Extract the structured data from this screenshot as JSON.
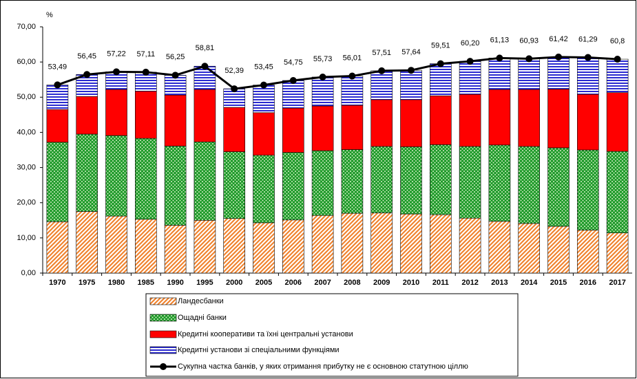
{
  "chart_data": {
    "type": "bar",
    "y_label": "%",
    "categories": [
      "1970",
      "1975",
      "1980",
      "1985",
      "1990",
      "1995",
      "2000",
      "2005",
      "2006",
      "2007",
      "2008",
      "2009",
      "2010",
      "2011",
      "2012",
      "2013",
      "2014",
      "2015",
      "2016",
      "2017"
    ],
    "series": [
      {
        "name": "Ландесбанки",
        "color": "#f0832e",
        "values": [
          14.6,
          17.5,
          16.2,
          15.3,
          13.6,
          15.0,
          15.5,
          14.3,
          15.1,
          16.4,
          17.0,
          17.1,
          16.8,
          16.6,
          15.6,
          14.7,
          14.1,
          13.3,
          12.2,
          11.4
        ]
      },
      {
        "name": "Ощадні банки",
        "color": "#1e9a2a",
        "values": [
          22.6,
          22.0,
          22.9,
          23.0,
          22.5,
          22.3,
          19.0,
          19.2,
          19.2,
          18.4,
          18.1,
          18.9,
          19.1,
          19.9,
          20.4,
          21.7,
          21.9,
          22.3,
          22.8,
          23.2
        ]
      },
      {
        "name": "Кредитні кооперативи  та їхні центральні установи",
        "color": "#ff0000",
        "values": [
          9.3,
          10.7,
          13.1,
          13.4,
          14.5,
          14.9,
          12.6,
          12.1,
          12.6,
          12.7,
          12.6,
          13.3,
          13.4,
          13.9,
          14.8,
          15.8,
          16.2,
          16.7,
          15.8,
          16.7
        ]
      },
      {
        "name": "Кредитні установи зі спеціальними функціями",
        "color": "#2a2ad0",
        "values": [
          6.99,
          6.25,
          5.02,
          5.41,
          5.65,
          6.61,
          5.29,
          7.85,
          7.85,
          8.23,
          8.31,
          8.21,
          8.34,
          9.11,
          9.4,
          8.93,
          8.73,
          9.12,
          10.49,
          9.5
        ]
      }
    ],
    "line": {
      "name": "Сукупна частка банків, у яких отримання прибутку не є основною статутною ціллю",
      "color": "#000000",
      "values": [
        53.49,
        56.45,
        57.22,
        57.11,
        56.25,
        58.81,
        52.39,
        53.45,
        54.75,
        55.73,
        56.01,
        57.51,
        57.64,
        59.51,
        60.2,
        61.13,
        60.93,
        61.42,
        61.29,
        60.8
      ],
      "value_labels": [
        "53,49",
        "56,45",
        "57,22",
        "57,11",
        "56,25",
        "58,81",
        "52,39",
        "53,45",
        "54,75",
        "55,73",
        "56,01",
        "57,51",
        "57,64",
        "59,51",
        "60,20",
        "61,13",
        "60,93",
        "61,42",
        "61,29",
        "60,8"
      ]
    },
    "ylim": [
      0,
      70
    ],
    "yticks": [
      {
        "value": 0,
        "label": "0,00"
      },
      {
        "value": 10,
        "label": "10,00"
      },
      {
        "value": 20,
        "label": "20,00"
      },
      {
        "value": 30,
        "label": "30,00"
      },
      {
        "value": 40,
        "label": "40,00"
      },
      {
        "value": 50,
        "label": "50,00"
      },
      {
        "value": 60,
        "label": "60,00"
      },
      {
        "value": 70,
        "label": "70,00"
      }
    ],
    "grid": false
  }
}
